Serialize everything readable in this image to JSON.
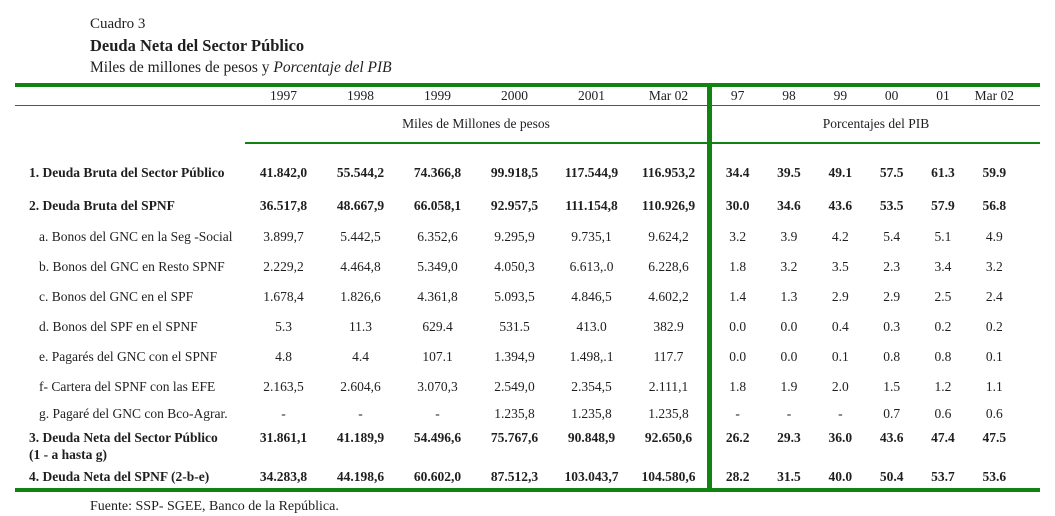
{
  "title": {
    "cuadro": "Cuadro 3",
    "main": "Deuda Neta del Sector Público",
    "subtitle_plain": "Miles de millones de pesos y ",
    "subtitle_italic": "Porcentaje del PIB"
  },
  "columns_left": [
    "1997",
    "1998",
    "1999",
    "2000",
    "2001",
    "Mar 02"
  ],
  "columns_right": [
    "97",
    "98",
    "99",
    "00",
    "01",
    "Mar 02"
  ],
  "group_left": "Miles de Millones de pesos",
  "group_right": "Porcentajes del PIB",
  "rows": [
    {
      "label": "1. Deuda Bruta del Sector Público",
      "bold": true,
      "sub": false,
      "pesos": [
        "41.842,0",
        "55.544,2",
        "74.366,8",
        "99.918,5",
        "117.544,9",
        "116.953,2"
      ],
      "pib": [
        "34.4",
        "39.5",
        "49.1",
        "57.5",
        "61.3",
        "59.9"
      ]
    },
    {
      "label": "2.  Deuda Bruta del SPNF",
      "bold": true,
      "sub": false,
      "pesos": [
        "36.517,8",
        "48.667,9",
        "66.058,1",
        "92.957,5",
        "111.154,8",
        "110.926,9"
      ],
      "pib": [
        "30.0",
        "34.6",
        "43.6",
        "53.5",
        "57.9",
        "56.8"
      ]
    },
    {
      "label": "a. Bonos del GNC en la Seg -Social",
      "bold": false,
      "sub": true,
      "pesos": [
        "3.899,7",
        "5.442,5",
        "6.352,6",
        "9.295,9",
        "9.735,1",
        "9.624,2"
      ],
      "pib": [
        "3.2",
        "3.9",
        "4.2",
        "5.4",
        "5.1",
        "4.9"
      ]
    },
    {
      "label": "b. Bonos del GNC en  Resto SPNF",
      "bold": false,
      "sub": true,
      "pesos": [
        "2.229,2",
        "4.464,8",
        "5.349,0",
        "4.050,3",
        "6.613,.0",
        "6.228,6"
      ],
      "pib": [
        "1.8",
        "3.2",
        "3.5",
        "2.3",
        "3.4",
        "3.2"
      ]
    },
    {
      "label": "c.  Bonos del GNC en el SPF",
      "bold": false,
      "sub": true,
      "pesos": [
        "1.678,4",
        "1.826,6",
        "4.361,8",
        "5.093,5",
        "4.846,5",
        "4.602,2"
      ],
      "pib": [
        "1.4",
        "1.3",
        "2.9",
        "2.9",
        "2.5",
        "2.4"
      ]
    },
    {
      "label": "d.  Bonos del SPF en el SPNF",
      "bold": false,
      "sub": true,
      "pesos": [
        "5.3",
        "11.3",
        "629.4",
        "531.5",
        "413.0",
        "382.9"
      ],
      "pib": [
        "0.0",
        "0.0",
        "0.4",
        "0.3",
        "0.2",
        "0.2"
      ]
    },
    {
      "label": "e.  Pagarés del GNC con el SPNF",
      "bold": false,
      "sub": true,
      "pesos": [
        "4.8",
        "4.4",
        "107.1",
        "1.394,9",
        "1.498,.1",
        "117.7"
      ],
      "pib": [
        "0.0",
        "0.0",
        "0.1",
        "0.8",
        "0.8",
        "0.1"
      ]
    },
    {
      "label": "f-  Cartera del SPNF con las EFE",
      "bold": false,
      "sub": true,
      "pesos": [
        "2.163,5",
        "2.604,6",
        "3.070,3",
        "2.549,0",
        "2.354,5",
        "2.111,1"
      ],
      "pib": [
        "1.8",
        "1.9",
        "2.0",
        "1.5",
        "1.2",
        "1.1"
      ]
    },
    {
      "label": "g.  Pagaré del GNC con Bco-Agrar.",
      "bold": false,
      "sub": true,
      "pesos": [
        "-",
        "-",
        "-",
        "1.235,8",
        "1.235,8",
        "1.235,8"
      ],
      "pib": [
        "-",
        "-",
        "-",
        "0.7",
        "0.6",
        "0.6"
      ]
    },
    {
      "label": "3.  Deuda Neta del Sector Público",
      "label2": "(1 -  a hasta g)",
      "bold": true,
      "sub": false,
      "pesos": [
        "31.861,1",
        "41.189,9",
        "54.496,6",
        "75.767,6",
        "90.848,9",
        "92.650,6"
      ],
      "pib": [
        "26.2",
        "29.3",
        "36.0",
        "43.6",
        "47.4",
        "47.5"
      ]
    },
    {
      "label": "4.  Deuda Neta del SPNF  (2-b-e)",
      "bold": true,
      "sub": false,
      "pesos": [
        "34.283,8",
        "44.198,6",
        "60.602,0",
        "87.512,3",
        "103.043,7",
        "104.580,6"
      ],
      "pib": [
        "28.2",
        "31.5",
        "40.0",
        "50.4",
        "53.7",
        "53.6"
      ]
    }
  ],
  "source": "Fuente: SSP- SGEE, Banco de la República.",
  "colors": {
    "rule_green": "#128312",
    "text": "#1f1f1f"
  }
}
